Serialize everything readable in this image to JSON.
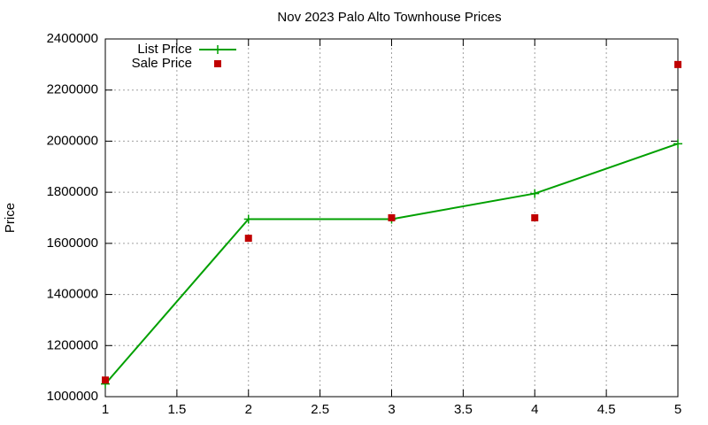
{
  "chart_data": {
    "type": "line",
    "title": "Nov 2023 Palo Alto Townhouse Prices",
    "y_label": "Price",
    "x": [
      1,
      2,
      3,
      4,
      5
    ],
    "series": [
      {
        "name": "List Price",
        "color": "#00a000",
        "marker": "plus",
        "line": true,
        "values": [
          1050000,
          1695000,
          1695000,
          1795000,
          1990000
        ]
      },
      {
        "name": "Sale Price",
        "color": "#c00000",
        "marker": "square",
        "line": false,
        "values": [
          1065000,
          1620000,
          1700000,
          1700000,
          2300000
        ]
      }
    ],
    "xlim": [
      1,
      5
    ],
    "xticks": [
      1,
      1.5,
      2,
      2.5,
      3,
      3.5,
      4,
      4.5,
      5
    ],
    "ylim": [
      1000000,
      2400000
    ],
    "yticks": [
      1000000,
      1200000,
      1400000,
      1600000,
      1800000,
      2000000,
      2200000,
      2400000
    ],
    "grid": true,
    "legend": "top-left"
  }
}
